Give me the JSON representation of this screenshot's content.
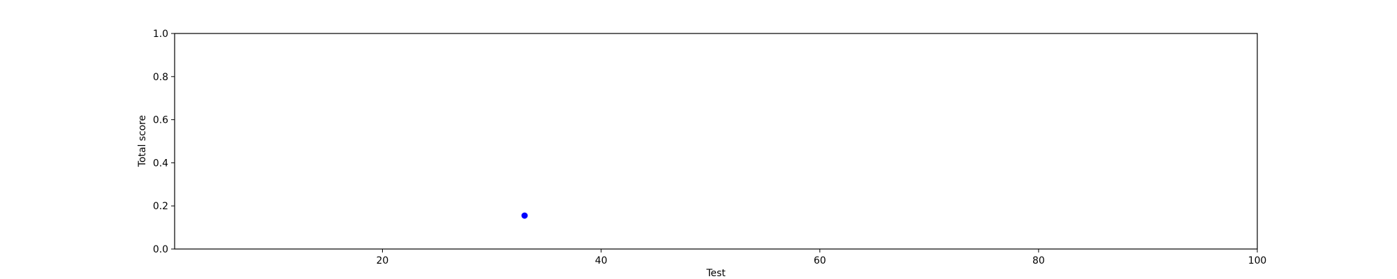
{
  "chart_data": {
    "type": "scatter",
    "title": "",
    "xlabel": "Test",
    "ylabel": "Total score",
    "xlim": [
      1,
      100
    ],
    "ylim": [
      0.0,
      1.0
    ],
    "x_ticks": [
      20,
      40,
      60,
      80,
      100
    ],
    "y_ticks": [
      "0.0",
      "0.2",
      "0.4",
      "0.6",
      "0.8",
      "1.0"
    ],
    "grid": false,
    "series": [
      {
        "color": "#0000ff",
        "points": [
          {
            "x": 33,
            "y": 0.155
          }
        ]
      }
    ]
  }
}
